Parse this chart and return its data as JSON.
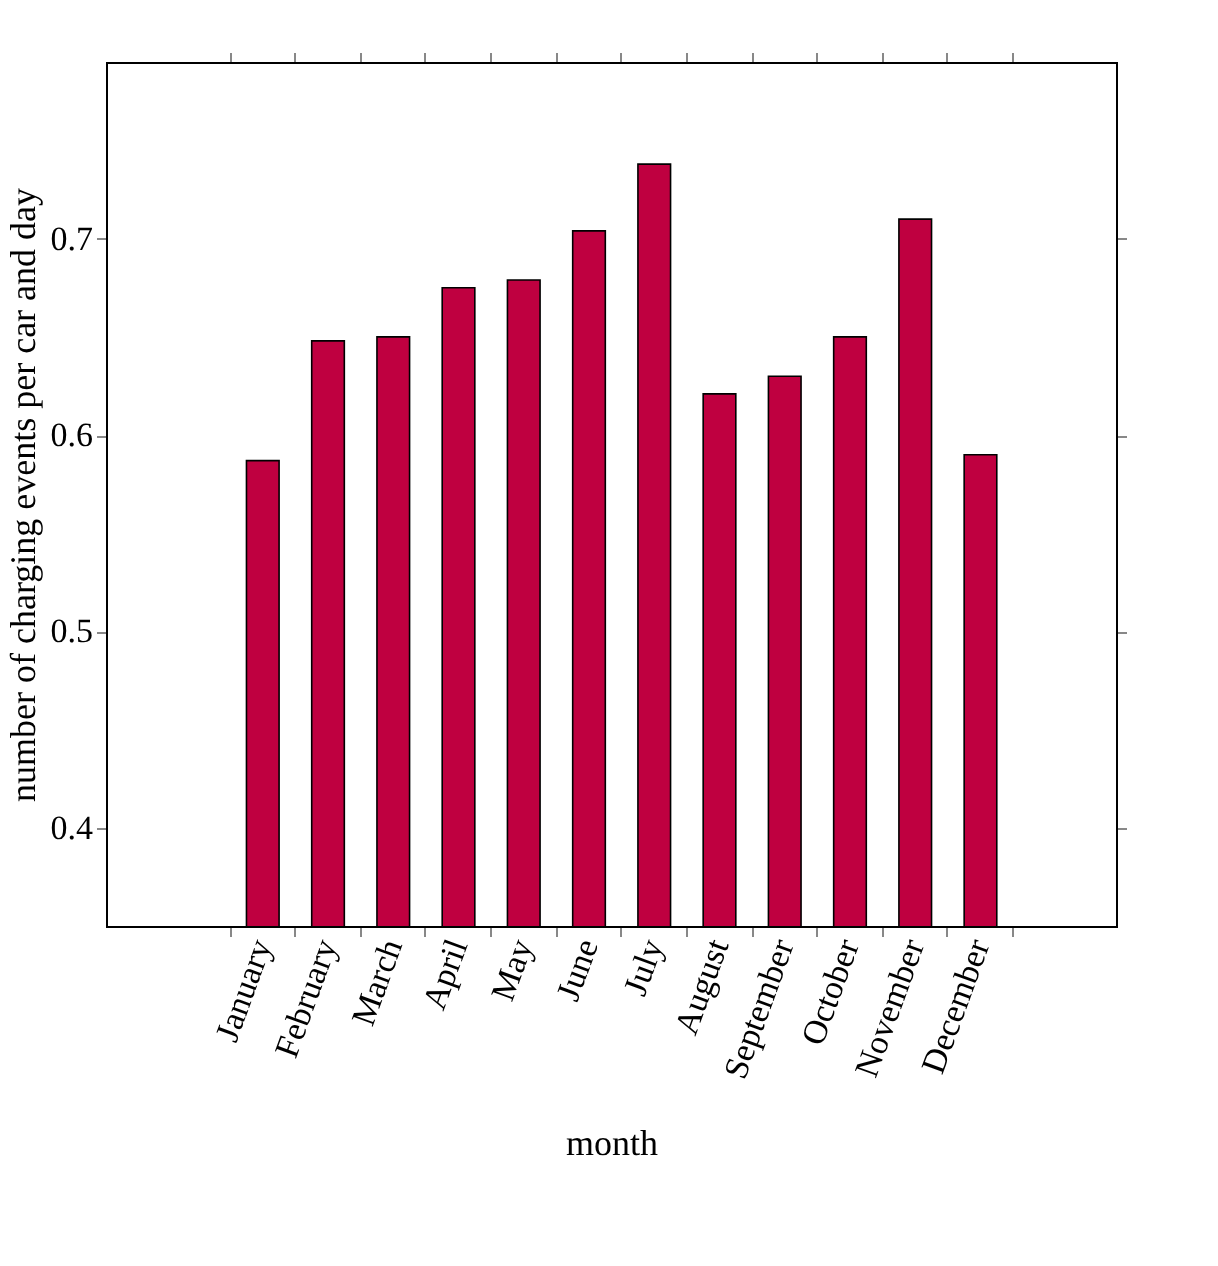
{
  "chart_data": {
    "type": "bar",
    "xlabel": "month",
    "ylabel": "number of charging events per car and day",
    "categories": [
      "January",
      "February",
      "March",
      "April",
      "May",
      "June",
      "July",
      "August",
      "September",
      "October",
      "November",
      "December"
    ],
    "values": [
      0.587,
      0.648,
      0.65,
      0.675,
      0.679,
      0.704,
      0.738,
      0.621,
      0.63,
      0.65,
      0.71,
      0.59
    ],
    "color": "#bf0040",
    "ylim": [
      0.35,
      0.79
    ],
    "yticks": [
      0.4,
      0.5,
      0.6,
      0.7
    ],
    "grid": false
  }
}
